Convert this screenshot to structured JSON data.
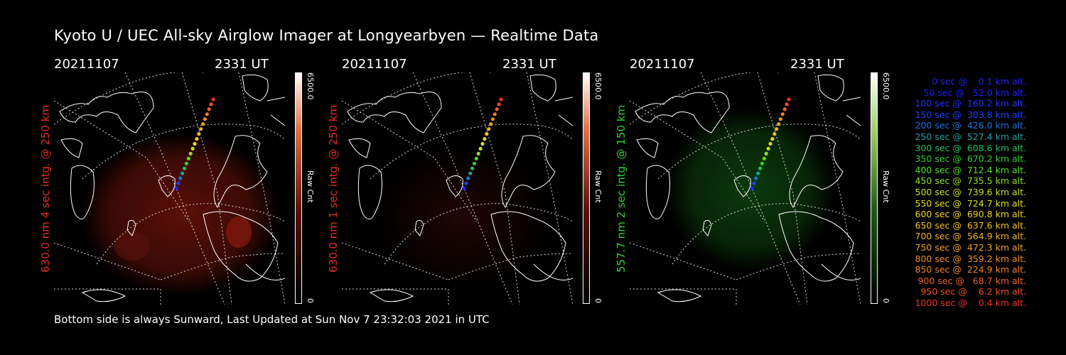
{
  "title": "Kyoto U / UEC All-sky Airglow Imager at Longyearbyen — Realtime Data",
  "footer": "Bottom side is always Sunward, Last Updated at Sun Nov  7 23:32:03 2021 in UTC",
  "colorbar": {
    "max_label": "6500.0",
    "unit_label": "Raw Cnt",
    "min_label": "0"
  },
  "panels": [
    {
      "date": "20211107",
      "time": "2331 UT",
      "ylabel": "630.0 nm 4 sec intg. @ 250 km",
      "label_color": "#e03020",
      "glow": "red"
    },
    {
      "date": "20211107",
      "time": "2331 UT",
      "ylabel": "630.0 nm 1 sec intg. @ 250 km",
      "label_color": "#e03020",
      "glow": "dimred"
    },
    {
      "date": "20211107",
      "time": "2331 UT",
      "ylabel": "557.7 nm 2 sec intg. @ 150 km",
      "label_color": "#30d030",
      "glow": "green"
    }
  ],
  "legend": [
    {
      "text": "   0 sec @    0.1 km alt.",
      "color": "#2020ff"
    },
    {
      "text": "  50 sec @   52.0 km alt.",
      "color": "#2020ff"
    },
    {
      "text": " 100 sec @  160.2 km alt.",
      "color": "#2030ff"
    },
    {
      "text": " 150 sec @  303.8 km alt.",
      "color": "#2040ff"
    },
    {
      "text": " 200 sec @  426.0 km alt.",
      "color": "#2070e0"
    },
    {
      "text": " 250 sec @  527.4 km alt.",
      "color": "#20a0a0"
    },
    {
      "text": " 300 sec @  608.6 km alt.",
      "color": "#20c060"
    },
    {
      "text": " 350 sec @  670.2 km alt.",
      "color": "#30d030"
    },
    {
      "text": " 400 sec @  712.4 km alt.",
      "color": "#50e020"
    },
    {
      "text": " 450 sec @  735.5 km alt.",
      "color": "#90e020"
    },
    {
      "text": " 500 sec @  739.6 km alt.",
      "color": "#c0e020"
    },
    {
      "text": " 550 sec @  724.7 km alt.",
      "color": "#e0e020"
    },
    {
      "text": " 600 sec @  690.8 km alt.",
      "color": "#f0d020"
    },
    {
      "text": " 650 sec @  637.6 km alt.",
      "color": "#f0c020"
    },
    {
      "text": " 700 sec @  564.9 km alt.",
      "color": "#f0b020"
    },
    {
      "text": " 750 sec @  472.3 km alt.",
      "color": "#f0a020"
    },
    {
      "text": " 800 sec @  359.2 km alt.",
      "color": "#f09020"
    },
    {
      "text": " 850 sec @  224.9 km alt.",
      "color": "#f08020"
    },
    {
      "text": " 900 sec @   68.7 km alt.",
      "color": "#f06020"
    },
    {
      "text": " 950 sec @    6.2 km alt.",
      "color": "#f05020"
    },
    {
      "text": "1000 sec @    0.4 km alt.",
      "color": "#f03020"
    }
  ]
}
